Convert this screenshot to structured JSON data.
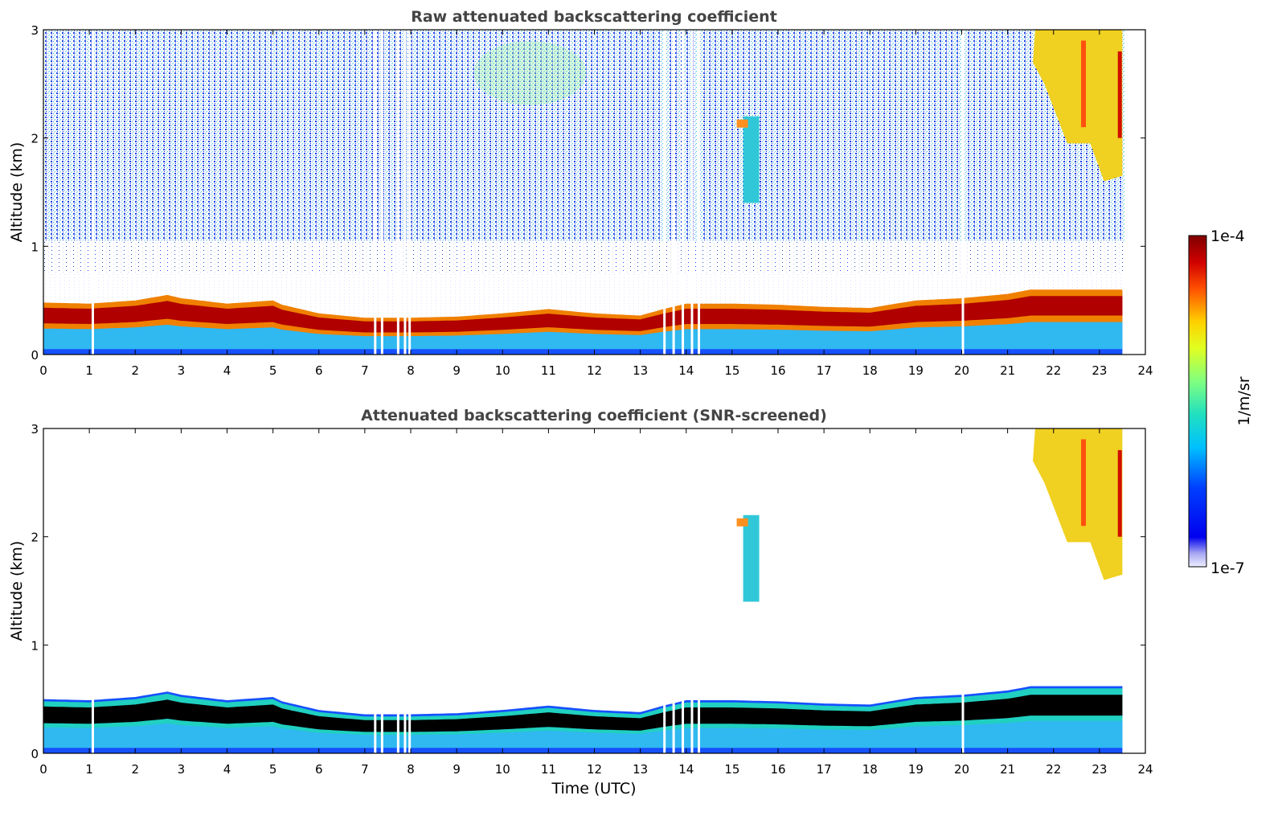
{
  "chart_data": [
    {
      "type": "heatmap",
      "title": "Raw attenuated backscattering coefficient",
      "xlabel": "",
      "ylabel": "Altitude (km)",
      "xlim": [
        0,
        24
      ],
      "ylim": [
        0,
        3
      ],
      "xticks": [
        "0",
        "1",
        "2",
        "3",
        "4",
        "5",
        "6",
        "7",
        "8",
        "9",
        "10",
        "11",
        "12",
        "13",
        "14",
        "15",
        "16",
        "17",
        "18",
        "19",
        "20",
        "21",
        "22",
        "23",
        "24"
      ],
      "yticks": [
        "0",
        "1",
        "2",
        "3"
      ],
      "data_extent_hours": [
        0,
        23.55
      ],
      "aerosol_layer_top_km": {
        "time": [
          0,
          1,
          2,
          2.7,
          3,
          4,
          5,
          5.2,
          6,
          7,
          8,
          9,
          10,
          11,
          12,
          13,
          13.5,
          14,
          15,
          16,
          17,
          18,
          19,
          20,
          21,
          21.5
        ],
        "height": [
          0.48,
          0.47,
          0.5,
          0.55,
          0.52,
          0.47,
          0.5,
          0.46,
          0.38,
          0.34,
          0.34,
          0.35,
          0.38,
          0.42,
          0.38,
          0.36,
          0.42,
          0.47,
          0.47,
          0.46,
          0.44,
          0.43,
          0.5,
          0.52,
          0.56,
          0.6
        ]
      },
      "cloud_features": [
        {
          "name": "cloud at 15.5h",
          "time_range": [
            15.1,
            15.8
          ],
          "altitude_km": [
            1.4,
            2.2
          ]
        },
        {
          "name": "high cloud 21.5-23.5h",
          "time_range": [
            21.5,
            23.5
          ],
          "altitude_km": [
            1.6,
            3.0
          ]
        }
      ],
      "missing_data_hours": [
        1.05,
        7.2,
        7.35,
        7.7,
        7.85,
        7.95,
        13.5,
        13.7,
        13.9,
        14.1,
        14.25,
        20.0
      ]
    },
    {
      "type": "heatmap",
      "title": "Attenuated backscattering coefficient (SNR-screened)",
      "xlabel": "Time (UTC)",
      "ylabel": "Altitude (km)",
      "xlim": [
        0,
        24
      ],
      "ylim": [
        0,
        3
      ],
      "xticks": [
        "0",
        "1",
        "2",
        "3",
        "4",
        "5",
        "6",
        "7",
        "8",
        "9",
        "10",
        "11",
        "12",
        "13",
        "14",
        "15",
        "16",
        "17",
        "18",
        "19",
        "20",
        "21",
        "22",
        "23",
        "24"
      ],
      "yticks": [
        "0",
        "1",
        "2",
        "3"
      ],
      "data_extent_hours": [
        0,
        23.55
      ]
    }
  ],
  "colorbar": {
    "label": "1/m/sr",
    "max_label": "1e-4",
    "min_label": "1e-7",
    "scale": "log",
    "range": [
      1e-07,
      0.0001
    ]
  }
}
